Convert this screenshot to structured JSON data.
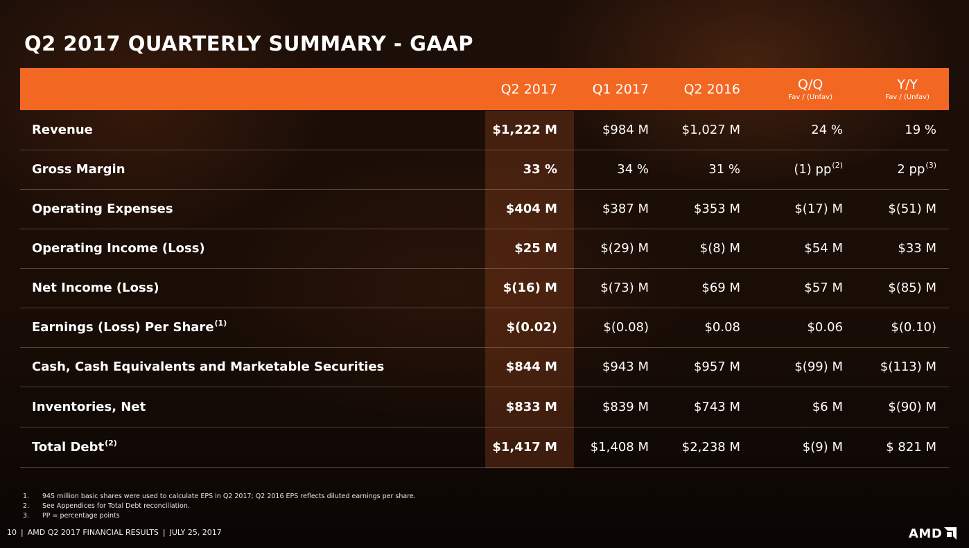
{
  "title": "Q2 2017 QUARTERLY SUMMARY - GAAP",
  "columns": [
    {
      "label": "Q2 2017",
      "sub": ""
    },
    {
      "label": "Q1 2017",
      "sub": ""
    },
    {
      "label": "Q2 2016",
      "sub": ""
    },
    {
      "label": "Q/Q",
      "sub": "Fav / (Unfav)"
    },
    {
      "label": "Y/Y",
      "sub": "Fav / (Unfav)"
    }
  ],
  "rows": [
    {
      "label": "Revenue",
      "label_sup": "",
      "values": [
        "$1,222 M",
        "$984 M",
        "$1,027 M",
        "24 %",
        "19 %"
      ],
      "sups": [
        "",
        "",
        "",
        "",
        ""
      ]
    },
    {
      "label": "Gross Margin",
      "label_sup": "",
      "values": [
        "33 %",
        "34 %",
        "31 %",
        "(1) pp",
        "2 pp"
      ],
      "sups": [
        "",
        "",
        "",
        "(2)",
        "(3)"
      ]
    },
    {
      "label": "Operating Expenses",
      "label_sup": "",
      "values": [
        "$404 M",
        "$387 M",
        "$353 M",
        "$(17) M",
        "$(51) M"
      ],
      "sups": [
        "",
        "",
        "",
        "",
        ""
      ]
    },
    {
      "label": "Operating Income (Loss)",
      "label_sup": "",
      "values": [
        "$25 M",
        "$(29) M",
        "$(8) M",
        "$54 M",
        "$33 M"
      ],
      "sups": [
        "",
        "",
        "",
        "",
        ""
      ]
    },
    {
      "label": "Net Income (Loss)",
      "label_sup": "",
      "values": [
        "$(16) M",
        "$(73) M",
        "$69 M",
        "$57 M",
        "$(85) M"
      ],
      "sups": [
        "",
        "",
        "",
        "",
        ""
      ]
    },
    {
      "label": "Earnings (Loss) Per Share",
      "label_sup": "(1)",
      "values": [
        "$(0.02)",
        "$(0.08)",
        "$0.08",
        "$0.06",
        "$(0.10)"
      ],
      "sups": [
        "",
        "",
        "",
        "",
        ""
      ]
    },
    {
      "label": "Cash, Cash Equivalents and Marketable Securities",
      "label_sup": "",
      "values": [
        "$844 M",
        "$943 M",
        "$957 M",
        "$(99) M",
        "$(113) M"
      ],
      "sups": [
        "",
        "",
        "",
        "",
        ""
      ]
    },
    {
      "label": "Inventories, Net",
      "label_sup": "",
      "values": [
        "$833 M",
        "$839 M",
        "$743 M",
        "$6 M",
        "$(90) M"
      ],
      "sups": [
        "",
        "",
        "",
        "",
        ""
      ]
    },
    {
      "label": "Total Debt",
      "label_sup": "(2)",
      "values": [
        "$1,417 M",
        "$1,408 M",
        "$2,238 M",
        "$(9) M",
        "$ 821 M"
      ],
      "sups": [
        "",
        "",
        "",
        "",
        ""
      ]
    }
  ],
  "footnotes": [
    {
      "num": "1.",
      "text": "945 million basic shares were used to calculate EPS in Q2 2017; Q2 2016 EPS reflects diluted earnings per share."
    },
    {
      "num": "2.",
      "text": "See Appendices for Total Debt reconciliation."
    },
    {
      "num": "3.",
      "text": "PP = percentage points"
    }
  ],
  "footer": {
    "page": "10",
    "text": "AMD Q2 2017 FINANCIAL RESULTS",
    "date": "JULY 25, 2017",
    "logo": "AMD"
  },
  "colors": {
    "header": "#f26722",
    "highlight": "#8c3e1c"
  }
}
